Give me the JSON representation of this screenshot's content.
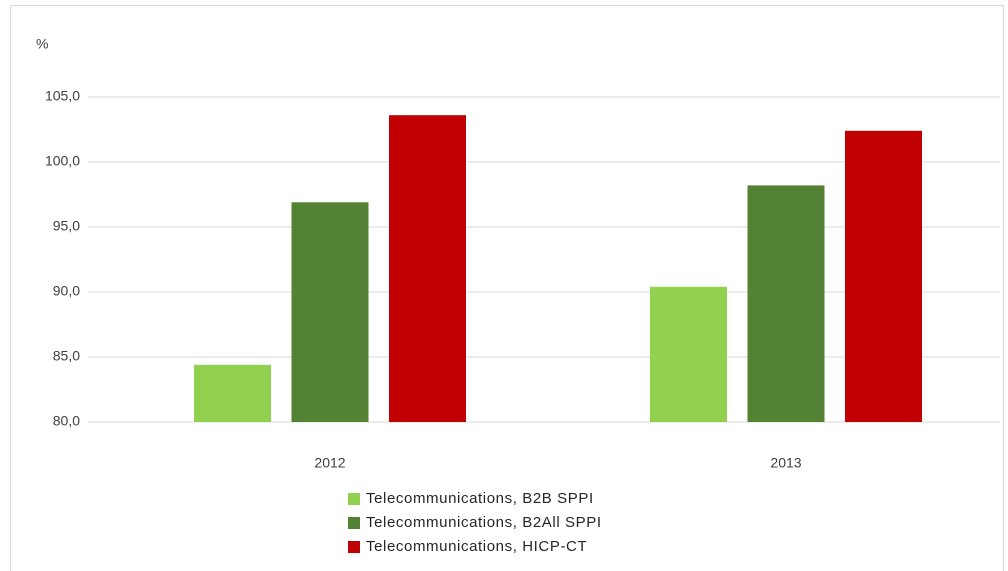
{
  "chart_data": {
    "type": "bar",
    "y_label": "%",
    "categories": [
      "2012",
      "2013"
    ],
    "series": [
      {
        "name": "Telecommunications, B2B SPPI",
        "color": "#92d050",
        "values": [
          84.4,
          90.4
        ]
      },
      {
        "name": "Telecommunications, B2All SPPI",
        "color": "#548235",
        "values": [
          96.9,
          98.2
        ]
      },
      {
        "name": "Telecommunications, HICP-CT",
        "color": "#c00000",
        "values": [
          103.6,
          102.4
        ]
      }
    ],
    "ylim": [
      80,
      105
    ],
    "yticks": [
      {
        "value": 80,
        "label": "80,0"
      },
      {
        "value": 85,
        "label": "85,0"
      },
      {
        "value": 90,
        "label": "90,0"
      },
      {
        "value": 95,
        "label": "95,0"
      },
      {
        "value": 100,
        "label": "100,0"
      },
      {
        "value": 105,
        "label": "105,0"
      }
    ],
    "grid": true,
    "legend": "bottom"
  }
}
